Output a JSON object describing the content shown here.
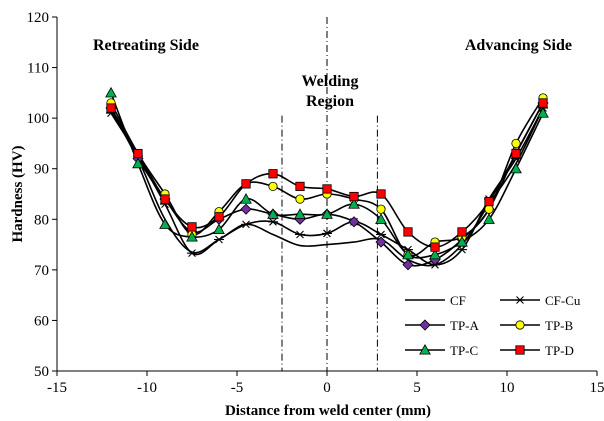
{
  "chart_data": {
    "type": "line",
    "xlabel": "Distance from weld center (mm)",
    "ylabel": "Hardness (HV)",
    "xlim": [
      -15,
      15
    ],
    "ylim": [
      50,
      120
    ],
    "xticks": [
      -15,
      -10,
      -5,
      0,
      5,
      10,
      15
    ],
    "yticks": [
      50,
      60,
      70,
      80,
      90,
      100,
      110,
      120
    ],
    "grid": false,
    "legend_position": "bottom-right",
    "annotations": {
      "left": "Retreating Side",
      "right": "Advancing Side",
      "center_line1": "Welding",
      "center_line2": "Region"
    },
    "vertical_lines": [
      -2.5,
      0,
      2.8
    ],
    "series": [
      {
        "name": "CF",
        "marker": "none",
        "color": "#000000",
        "x": [
          -12,
          -10.5,
          -9,
          -7.5,
          -6,
          -4.5,
          -3,
          -1.5,
          0,
          1.5,
          3,
          4.5,
          6,
          7.5,
          9,
          10.5,
          12
        ],
        "y": [
          101.5,
          92,
          80,
          73.5,
          76,
          79,
          77,
          74.8,
          75,
          75.5,
          76,
          72,
          71,
          75,
          83,
          91,
          102
        ]
      },
      {
        "name": "CF-Cu",
        "marker": "asterisk",
        "color": "#000000",
        "x": [
          -12,
          -10.5,
          -9,
          -7.5,
          -6,
          -4.5,
          -3,
          -1.5,
          0,
          1.5,
          3,
          4.5,
          6,
          7.5,
          9,
          10.5,
          12
        ],
        "y": [
          101,
          92.5,
          83,
          73.3,
          76,
          79,
          79.5,
          77,
          77.2,
          79.5,
          77,
          74,
          71,
          74,
          84,
          92,
          102
        ]
      },
      {
        "name": "TP-A",
        "marker": "diamond",
        "color": "#7030a0",
        "x": [
          -12,
          -10.5,
          -9,
          -7.5,
          -6,
          -4.5,
          -3,
          -1.5,
          0,
          1.5,
          3,
          4.5,
          6,
          7.5,
          9,
          10.5,
          12
        ],
        "y": [
          102,
          92,
          84,
          77.5,
          80,
          82,
          81,
          80,
          81,
          79.5,
          75.5,
          71,
          72,
          76,
          82,
          93,
          103
        ]
      },
      {
        "name": "TP-B",
        "marker": "circle",
        "color": "#ffff00",
        "x": [
          -12,
          -10.5,
          -9,
          -7.5,
          -6,
          -4.5,
          -3,
          -1.5,
          0,
          1.5,
          3,
          4.5,
          6,
          7.5,
          9,
          10.5,
          12
        ],
        "y": [
          103,
          93,
          85,
          77,
          81.5,
          87,
          86.5,
          84,
          85,
          84,
          82,
          73,
          75.5,
          76.5,
          82,
          95,
          104
        ]
      },
      {
        "name": "TP-C",
        "marker": "triangle",
        "color": "#00b050",
        "x": [
          -12,
          -10.5,
          -9,
          -7.5,
          -6,
          -4.5,
          -3,
          -1.5,
          0,
          1.5,
          3,
          4.5,
          6,
          7.5,
          9,
          10.5,
          12
        ],
        "y": [
          105,
          91,
          79,
          76.5,
          78,
          84,
          81,
          81,
          81,
          83,
          80,
          73,
          73,
          75.5,
          80,
          90,
          101
        ]
      },
      {
        "name": "TP-D",
        "marker": "square",
        "color": "#ff0000",
        "x": [
          -12,
          -10.5,
          -9,
          -7.5,
          -6,
          -4.5,
          -3,
          -1.5,
          0,
          1.5,
          3,
          4.5,
          6,
          7.5,
          9,
          10.5,
          12
        ],
        "y": [
          102,
          93,
          84,
          78.5,
          80.5,
          87,
          89,
          86.5,
          86,
          84.5,
          85,
          77.5,
          74.5,
          77.5,
          83.5,
          93,
          103
        ]
      }
    ]
  }
}
